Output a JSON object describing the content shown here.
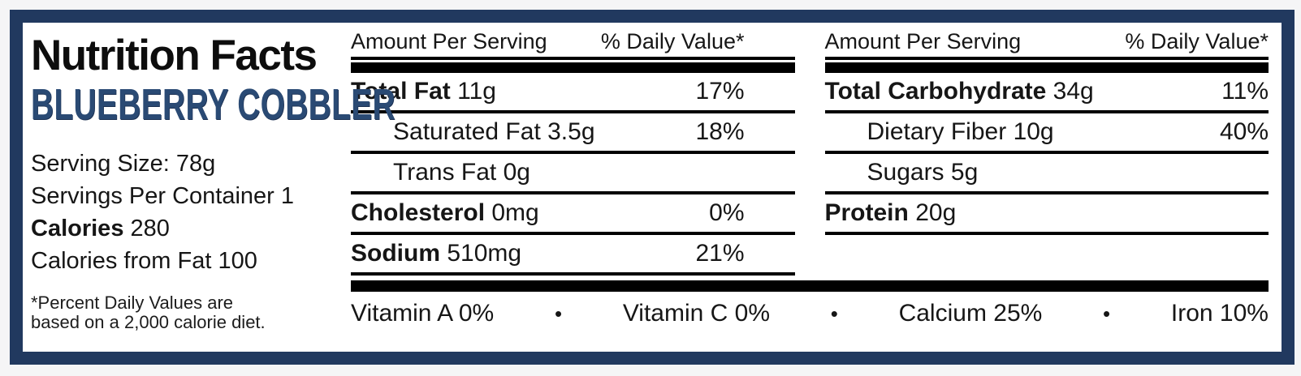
{
  "label": {
    "title": "Nutrition Facts",
    "product_name": "BLUEBERRY COBBLER",
    "serving_size": "Serving Size: 78g",
    "servings_per_container": "Servings Per Container 1",
    "calories_label": "Calories",
    "calories_value": "280",
    "calories_from_fat": "Calories from Fat 100",
    "footnote_line1": "*Percent Daily Values are",
    "footnote_line2": "based on a 2,000 calorie diet.",
    "separator_dot": "•",
    "columns": [
      {
        "header_amount": "Amount Per Serving",
        "header_dv": "% Daily Value*",
        "rows": [
          {
            "name": "Total Fat",
            "amount": "11g",
            "dv": "17%"
          },
          {
            "name": "Saturated Fat",
            "amount": "3.5g",
            "dv": "18%"
          },
          {
            "name": "Trans Fat",
            "amount": "0g",
            "dv": ""
          },
          {
            "name": "Cholesterol",
            "amount": "0mg",
            "dv": "0%"
          },
          {
            "name": "Sodium",
            "amount": "510mg",
            "dv": "21%"
          }
        ]
      },
      {
        "header_amount": "Amount Per Serving",
        "header_dv": "% Daily Value*",
        "rows": [
          {
            "name": "Total Carbohydrate",
            "amount": "34g",
            "dv": "11%"
          },
          {
            "name": "Dietary Fiber",
            "amount": "10g",
            "dv": "40%"
          },
          {
            "name": "Sugars",
            "amount": "5g",
            "dv": ""
          },
          {
            "name": "Protein",
            "amount": "20g",
            "dv": ""
          },
          {
            "name": "",
            "amount": "",
            "dv": ""
          }
        ]
      }
    ],
    "micronutrients": [
      "Vitamin A 0%",
      "Vitamin C 0%",
      "Calcium 25%",
      "Iron 10%"
    ],
    "colors": {
      "border_navy": "#21395f",
      "product_navy": "#2a4a74",
      "bar_black": "#000000",
      "page_bg": "#f5f5f6"
    }
  }
}
